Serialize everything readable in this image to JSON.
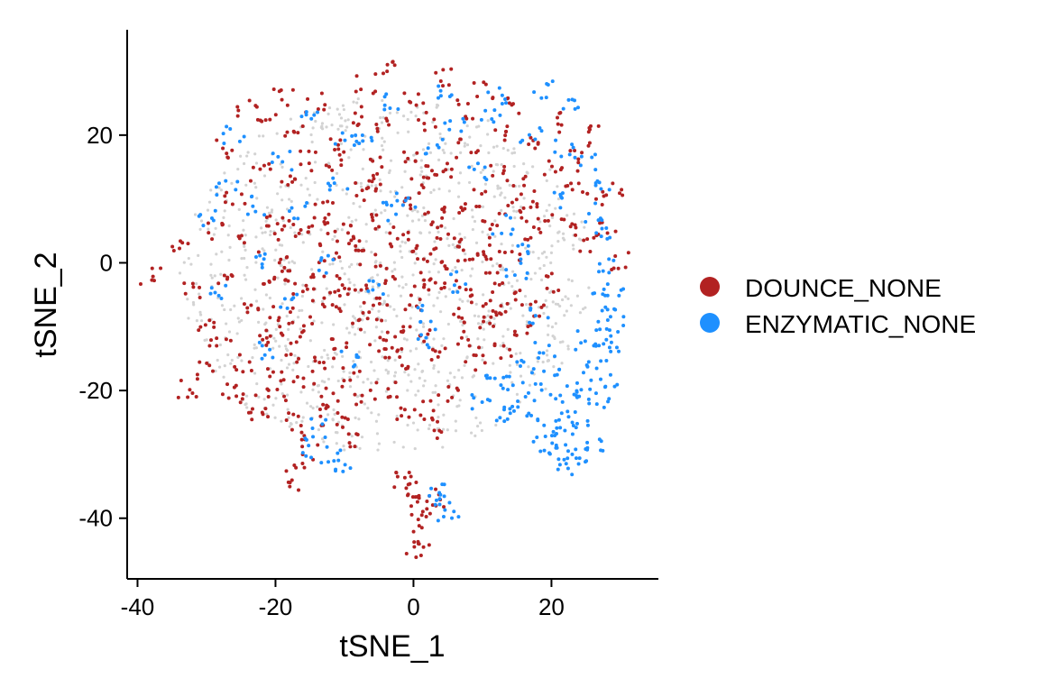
{
  "chart_data": {
    "type": "scatter",
    "title": "",
    "xlabel": "tSNE_1",
    "ylabel": "tSNE_2",
    "xlim": [
      -41.5,
      35.5
    ],
    "ylim": [
      -49.5,
      36.5
    ],
    "x_ticks": [
      -40,
      -20,
      0,
      20
    ],
    "y_ticks": [
      -40,
      -20,
      0,
      20
    ],
    "x_tick_labels": [
      "-40",
      "-20",
      "0",
      "20"
    ],
    "y_tick_labels": [
      "-40",
      "-20",
      "0",
      "20"
    ],
    "grid": false,
    "legend_position": "right",
    "background_color": "#d3d3d3",
    "series": [
      {
        "name": "DOUNCE_NONE",
        "color": "#b22222",
        "points": [
          [
            -38,
            -2
          ],
          [
            -34,
            2
          ],
          [
            -32,
            -4
          ],
          [
            -30,
            -10
          ],
          [
            -29,
            5
          ],
          [
            -28,
            -13
          ],
          [
            -27,
            18
          ],
          [
            -27,
            -2
          ],
          [
            -26,
            10
          ],
          [
            -25,
            -16
          ],
          [
            -24,
            24
          ],
          [
            -24,
            3
          ],
          [
            -23,
            -7
          ],
          [
            -22,
            14
          ],
          [
            -22,
            -12
          ],
          [
            -21,
            22
          ],
          [
            -21,
            -2
          ],
          [
            -20,
            7
          ],
          [
            -20,
            -17
          ],
          [
            -19,
            26
          ],
          [
            -19,
            -8
          ],
          [
            -18,
            12
          ],
          [
            -18,
            0
          ],
          [
            -17,
            -14
          ],
          [
            -17,
            20
          ],
          [
            -16,
            4
          ],
          [
            -16,
            -5
          ],
          [
            -15,
            -10
          ],
          [
            -15,
            16
          ],
          [
            -14,
            25
          ],
          [
            -14,
            -1
          ],
          [
            -13,
            8
          ],
          [
            -13,
            -16
          ],
          [
            -12,
            2
          ],
          [
            -12,
            -7
          ],
          [
            -11,
            18
          ],
          [
            -11,
            -12
          ],
          [
            -10,
            5
          ],
          [
            -10,
            -3
          ],
          [
            -9,
            23
          ],
          [
            -9,
            -18
          ],
          [
            -8,
            11
          ],
          [
            -8,
            -9
          ],
          [
            -7,
            1
          ],
          [
            -7,
            28
          ],
          [
            -6,
            -5
          ],
          [
            -6,
            15
          ],
          [
            -5,
            -13
          ],
          [
            -5,
            6
          ],
          [
            -4,
            21
          ],
          [
            -4,
            -2
          ],
          [
            -3,
            30
          ],
          [
            -3,
            -10
          ],
          [
            -2,
            9
          ],
          [
            -2,
            -16
          ],
          [
            -1,
            3
          ],
          [
            -1,
            17
          ],
          [
            0,
            -6
          ],
          [
            0,
            26
          ],
          [
            1,
            12
          ],
          [
            1,
            -11
          ],
          [
            2,
            1
          ],
          [
            2,
            22
          ],
          [
            3,
            -4
          ],
          [
            3,
            7
          ],
          [
            4,
            29
          ],
          [
            4,
            -14
          ],
          [
            5,
            15
          ],
          [
            5,
            -1
          ],
          [
            6,
            8
          ],
          [
            6,
            -8
          ],
          [
            7,
            24
          ],
          [
            7,
            3
          ],
          [
            8,
            -12
          ],
          [
            8,
            18
          ],
          [
            9,
            0
          ],
          [
            9,
            10
          ],
          [
            10,
            -6
          ],
          [
            10,
            27
          ],
          [
            11,
            5
          ],
          [
            11,
            -10
          ],
          [
            12,
            14
          ],
          [
            12,
            -2
          ],
          [
            13,
            20
          ],
          [
            13,
            -8
          ],
          [
            14,
            9
          ],
          [
            14,
            2
          ],
          [
            15,
            -5
          ],
          [
            15,
            25
          ],
          [
            16,
            12
          ],
          [
            16,
            -11
          ],
          [
            17,
            4
          ],
          [
            18,
            18
          ],
          [
            18,
            -7
          ],
          [
            19,
            8
          ],
          [
            20,
            15
          ],
          [
            20,
            -3
          ],
          [
            21,
            22
          ],
          [
            22,
            6
          ],
          [
            23,
            13
          ],
          [
            24,
            17
          ],
          [
            25,
            3
          ],
          [
            26,
            10
          ],
          [
            27,
            20
          ],
          [
            28,
            5
          ],
          [
            29,
            12
          ],
          [
            30,
            0
          ],
          [
            -33,
            -20
          ],
          [
            -30,
            -17
          ],
          [
            -27,
            -20
          ],
          [
            -24,
            -22
          ],
          [
            -20,
            -21
          ],
          [
            -17,
            -25
          ],
          [
            -15,
            -28
          ],
          [
            -16,
            -31
          ],
          [
            -17,
            -34
          ],
          [
            -13,
            -24
          ],
          [
            -10,
            -25
          ],
          [
            -9,
            -28
          ],
          [
            -7,
            -21
          ],
          [
            -4,
            -20
          ],
          [
            -1,
            -24
          ],
          [
            2,
            -23
          ],
          [
            4,
            -26
          ],
          [
            5,
            -21
          ],
          [
            -22,
            -24
          ],
          [
            -12,
            -21
          ],
          [
            -2,
            -34
          ],
          [
            0,
            -36
          ],
          [
            1,
            -38
          ],
          [
            2,
            -40
          ],
          [
            1,
            -43
          ],
          [
            0,
            -45
          ],
          [
            3,
            -37
          ],
          [
            -1,
            -35
          ],
          [
            -19,
            5
          ],
          [
            -17,
            -2
          ],
          [
            -14,
            6
          ],
          [
            -11,
            -5
          ],
          [
            -8,
            3
          ],
          [
            -5,
            -8
          ],
          [
            -2,
            4
          ],
          [
            1,
            -3
          ],
          [
            4,
            5
          ],
          [
            7,
            -4
          ],
          [
            10,
            2
          ],
          [
            13,
            -14
          ],
          [
            16,
            8
          ],
          [
            -20,
            -10
          ],
          [
            -16,
            -18
          ],
          [
            -12,
            16
          ],
          [
            -6,
            12
          ],
          [
            -3,
            -14
          ],
          [
            3,
            14
          ],
          [
            9,
            -16
          ]
        ]
      },
      {
        "name": "ENZYMATIC_NONE",
        "color": "#1e90ff",
        "points": [
          [
            -30,
            7
          ],
          [
            -28,
            -5
          ],
          [
            -26,
            20
          ],
          [
            -23,
            9
          ],
          [
            -21,
            -14
          ],
          [
            -19,
            16
          ],
          [
            -17,
            8
          ],
          [
            -15,
            24
          ],
          [
            -13,
            0
          ],
          [
            -11,
            12
          ],
          [
            -9,
            -15
          ],
          [
            -7,
            19
          ],
          [
            -5,
            -4
          ],
          [
            -3,
            25
          ],
          [
            -1,
            10
          ],
          [
            1,
            -8
          ],
          [
            3,
            18
          ],
          [
            5,
            27
          ],
          [
            7,
            -3
          ],
          [
            9,
            14
          ],
          [
            11,
            23
          ],
          [
            13,
            6
          ],
          [
            15,
            -1
          ],
          [
            17,
            20
          ],
          [
            19,
            27
          ],
          [
            21,
            10
          ],
          [
            23,
            25
          ],
          [
            25,
            16
          ],
          [
            27,
            4
          ],
          [
            28,
            12
          ],
          [
            18,
            -8
          ],
          [
            19,
            -14
          ],
          [
            20,
            -18
          ],
          [
            21,
            -22
          ],
          [
            22,
            -26
          ],
          [
            23,
            -30
          ],
          [
            24,
            -24
          ],
          [
            25,
            -20
          ],
          [
            26,
            -16
          ],
          [
            27,
            -12
          ],
          [
            28,
            -8
          ],
          [
            29,
            -4
          ],
          [
            20,
            -26
          ],
          [
            22,
            -32
          ],
          [
            24,
            -30
          ],
          [
            26,
            -28
          ],
          [
            27,
            -22
          ],
          [
            28,
            -18
          ],
          [
            29,
            -14
          ],
          [
            29,
            -10
          ],
          [
            17,
            -20
          ],
          [
            18,
            -24
          ],
          [
            16,
            -16
          ],
          [
            15,
            -22
          ],
          [
            19,
            -28
          ],
          [
            21,
            -30
          ],
          [
            23,
            -20
          ],
          [
            25,
            -12
          ],
          [
            27,
            -6
          ],
          [
            28,
            0
          ],
          [
            12,
            -18
          ],
          [
            14,
            -19
          ],
          [
            13,
            -24
          ],
          [
            10,
            -22
          ],
          [
            -14,
            -26
          ],
          [
            -15,
            -29
          ],
          [
            -12,
            -30
          ],
          [
            -10,
            -32
          ],
          [
            3,
            -35
          ],
          [
            4,
            -38
          ],
          [
            5,
            -40
          ],
          [
            -27,
            12
          ],
          [
            -22,
            0
          ],
          [
            -18,
            -6
          ],
          [
            -10,
            20
          ],
          [
            -4,
            8
          ],
          [
            2,
            -12
          ],
          [
            6,
            22
          ],
          [
            12,
            26
          ],
          [
            16,
            2
          ],
          [
            22,
            18
          ],
          [
            26,
            8
          ]
        ]
      }
    ]
  }
}
